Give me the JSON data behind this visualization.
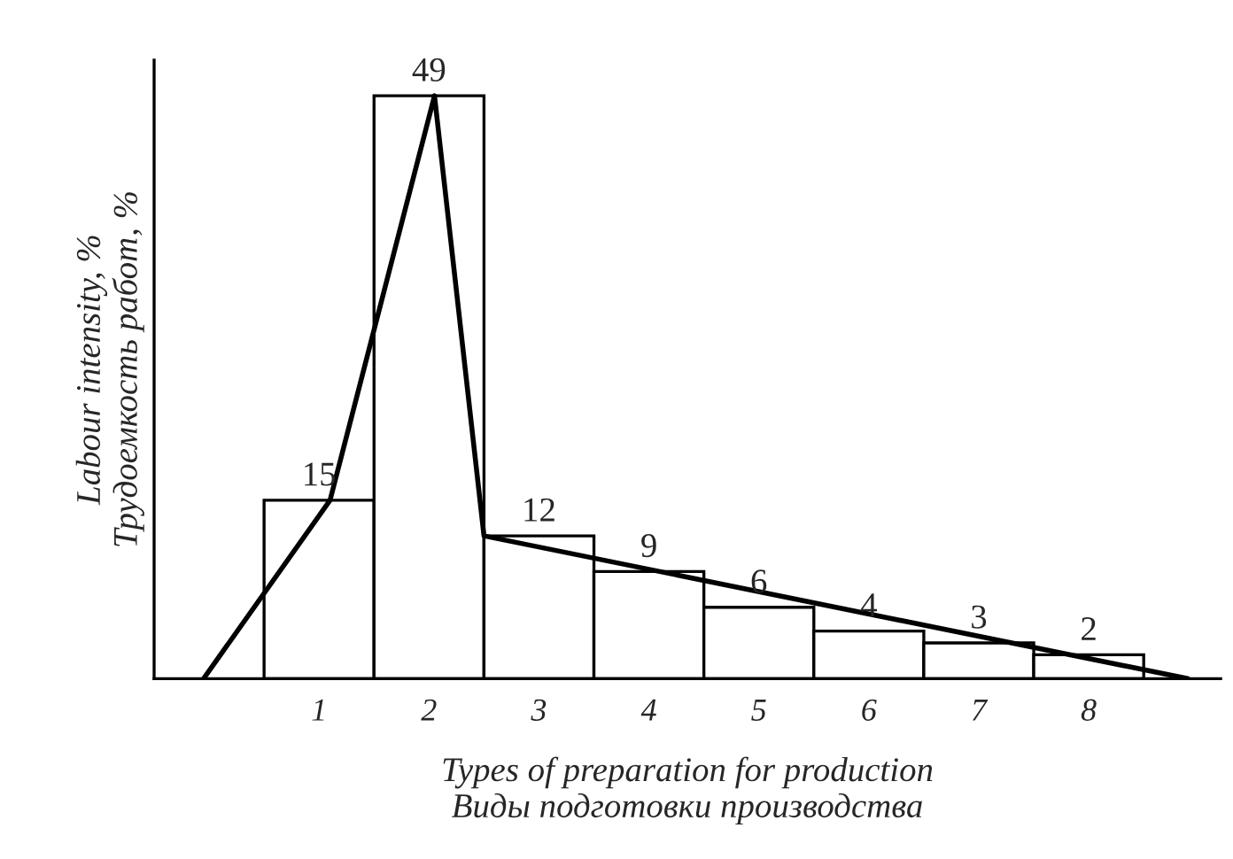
{
  "chart_data": {
    "type": "bar",
    "xlabel": "Types of preparation for production\nВиды подготовки производства",
    "ylabel": "Labour intensity, %\nТрудоемкость работ, %",
    "x": [
      1,
      2,
      3,
      4,
      5,
      6,
      7,
      8
    ],
    "xlim": [
      -0.5,
      9.2
    ],
    "ylim": [
      0,
      52
    ],
    "xticks": [
      1,
      2,
      3,
      4,
      5,
      6,
      7,
      8
    ],
    "tick_labels": "x",
    "series": [
      {
        "color": "#ffffff",
        "values": [
          15,
          49,
          12,
          9,
          6,
          4,
          3,
          2
        ],
        "value_labels": [
          "15",
          "49",
          "12",
          "9",
          "6",
          "4",
          "3",
          "2"
        ]
      },
      {
        "type": "line",
        "color": "#000000",
        "x": [
          -0.05,
          1.1,
          2.05,
          2.5,
          8.9
        ],
        "values": [
          0,
          15,
          49,
          12,
          0
        ]
      }
    ]
  }
}
